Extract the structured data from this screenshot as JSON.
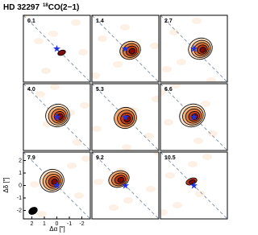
{
  "header": {
    "title": "HD 32297",
    "isotope": "18",
    "molecule": "CO(2−1)"
  },
  "panels": [
    {
      "label": "0.1"
    },
    {
      "label": "1.4"
    },
    {
      "label": "2.7"
    },
    {
      "label": "4.0"
    },
    {
      "label": "5.3"
    },
    {
      "label": "6.6"
    },
    {
      "label": "7.9"
    },
    {
      "label": "9.2"
    },
    {
      "label": "10.5"
    }
  ],
  "axes": {
    "xlabel": "Δα [″]",
    "ylabel": "Δδ [″]",
    "xticks": [
      2,
      1,
      0,
      -1,
      -2
    ],
    "yticks": [
      2,
      1,
      0,
      -1,
      -2
    ]
  }
}
